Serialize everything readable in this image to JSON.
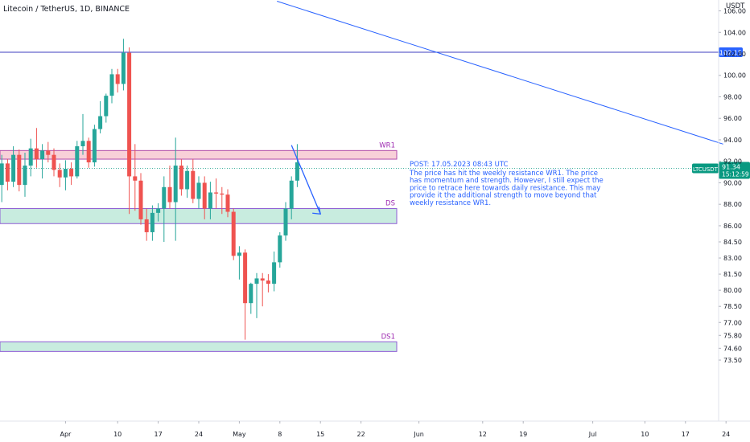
{
  "header": {
    "symbol_title": "Litecoin / TetherUS, 1D, BINANCE",
    "currency": "USDT"
  },
  "colors": {
    "up": "#26a69a",
    "down": "#ef5350",
    "resistance_fill": "#f8d0d8",
    "resistance_border": "#b04aa9",
    "support_fill": "#c8ecdf",
    "support_border": "#8e5bd4",
    "line_blue": "#2962ff",
    "note_text": "#2962ff",
    "zone_label": "#9c27b0",
    "price_badge": "#089981",
    "level_badge": "#2962ff"
  },
  "price_axis": {
    "ticks": [
      "106.00",
      "104.00",
      "102.00",
      "100.00",
      "98.00",
      "96.00",
      "94.00",
      "92.00",
      "90.00",
      "88.00",
      "86.00",
      "84.50",
      "83.00",
      "81.50",
      "80.00",
      "78.50",
      "77.00",
      "75.80",
      "74.60",
      "73.50"
    ],
    "level_badge": "102.15",
    "ticker_badge": "LTCUSDT",
    "last_price_badge": "91.34",
    "countdown_badge": "15:12:59"
  },
  "time_axis": {
    "ticks": [
      "Apr",
      "10",
      "17",
      "24",
      "May",
      "8",
      "15",
      "22",
      "Jun",
      "12",
      "19",
      "Jul",
      "10",
      "17",
      "24"
    ]
  },
  "zones": [
    {
      "label": "WR1",
      "top": 93.0,
      "bottom": 92.2,
      "kind": "resistance"
    },
    {
      "label": "DS",
      "top": 87.6,
      "bottom": 86.2,
      "kind": "support"
    },
    {
      "label": "DS1",
      "top": 75.2,
      "bottom": 74.3,
      "kind": "support"
    }
  ],
  "annotation": {
    "title": "POST: 17.05.2023 08:43 UTC",
    "lines": [
      "The price has hit the weekly resistance WR1. The price",
      "has momentum and strength. However, I still expect the",
      "price to retrace here towards daily resistance. This may",
      "provide it the additional strength to move beyond that",
      "weekly resistance WR1."
    ]
  },
  "chart_data": {
    "type": "candlestick",
    "symbol": "LTCUSDT",
    "interval": "1D",
    "exchange": "BINANCE",
    "x_start_date": "2023-03-20",
    "horizontal_level": 102.15,
    "last_price": 91.34,
    "candles": [
      {
        "o": 89.8,
        "h": 92.6,
        "l": 88.2,
        "c": 91.8
      },
      {
        "o": 91.8,
        "h": 92.2,
        "l": 89.3,
        "c": 90.1
      },
      {
        "o": 90.1,
        "h": 93.4,
        "l": 89.6,
        "c": 92.6
      },
      {
        "o": 92.6,
        "h": 93.1,
        "l": 89.2,
        "c": 89.8
      },
      {
        "o": 89.8,
        "h": 92.8,
        "l": 88.7,
        "c": 91.6
      },
      {
        "o": 91.6,
        "h": 94.1,
        "l": 90.6,
        "c": 93.2
      },
      {
        "o": 93.2,
        "h": 95.1,
        "l": 91.4,
        "c": 92.2
      },
      {
        "o": 92.2,
        "h": 93.6,
        "l": 90.4,
        "c": 93.0
      },
      {
        "o": 93.0,
        "h": 93.8,
        "l": 91.9,
        "c": 92.6
      },
      {
        "o": 92.6,
        "h": 93.2,
        "l": 90.6,
        "c": 91.2
      },
      {
        "o": 91.2,
        "h": 91.8,
        "l": 89.6,
        "c": 90.5
      },
      {
        "o": 90.5,
        "h": 92.1,
        "l": 89.3,
        "c": 91.3
      },
      {
        "o": 91.3,
        "h": 91.9,
        "l": 89.8,
        "c": 90.6
      },
      {
        "o": 90.6,
        "h": 93.9,
        "l": 90.4,
        "c": 93.4
      },
      {
        "o": 93.4,
        "h": 96.4,
        "l": 92.6,
        "c": 93.9
      },
      {
        "o": 93.9,
        "h": 94.2,
        "l": 91.4,
        "c": 91.9
      },
      {
        "o": 91.9,
        "h": 95.4,
        "l": 91.5,
        "c": 95.0
      },
      {
        "o": 95.0,
        "h": 97.6,
        "l": 94.6,
        "c": 96.2
      },
      {
        "o": 96.2,
        "h": 98.3,
        "l": 95.6,
        "c": 98.1
      },
      {
        "o": 98.1,
        "h": 100.6,
        "l": 97.4,
        "c": 100.1
      },
      {
        "o": 100.1,
        "h": 100.6,
        "l": 98.4,
        "c": 99.2
      },
      {
        "o": 99.2,
        "h": 103.4,
        "l": 98.6,
        "c": 102.1
      },
      {
        "o": 102.1,
        "h": 102.6,
        "l": 87.1,
        "c": 90.6
      },
      {
        "o": 90.6,
        "h": 93.6,
        "l": 87.4,
        "c": 90.2
      },
      {
        "o": 90.2,
        "h": 90.9,
        "l": 86.1,
        "c": 86.6
      },
      {
        "o": 86.6,
        "h": 87.6,
        "l": 84.6,
        "c": 85.4
      },
      {
        "o": 85.4,
        "h": 87.9,
        "l": 84.6,
        "c": 87.2
      },
      {
        "o": 87.2,
        "h": 88.1,
        "l": 86.4,
        "c": 87.6
      },
      {
        "o": 87.6,
        "h": 90.6,
        "l": 84.5,
        "c": 89.6
      },
      {
        "o": 89.6,
        "h": 91.6,
        "l": 87.6,
        "c": 88.2
      },
      {
        "o": 88.2,
        "h": 94.2,
        "l": 84.6,
        "c": 91.6
      },
      {
        "o": 91.6,
        "h": 92.2,
        "l": 88.8,
        "c": 89.4
      },
      {
        "o": 89.4,
        "h": 91.6,
        "l": 88.6,
        "c": 91.1
      },
      {
        "o": 91.1,
        "h": 92.2,
        "l": 88.1,
        "c": 88.5
      },
      {
        "o": 88.5,
        "h": 90.6,
        "l": 87.6,
        "c": 90.0
      },
      {
        "o": 90.0,
        "h": 90.6,
        "l": 86.6,
        "c": 87.6
      },
      {
        "o": 87.6,
        "h": 90.1,
        "l": 86.6,
        "c": 89.1
      },
      {
        "o": 89.1,
        "h": 90.4,
        "l": 87.6,
        "c": 89.0
      },
      {
        "o": 89.0,
        "h": 89.6,
        "l": 87.1,
        "c": 88.9
      },
      {
        "o": 88.9,
        "h": 89.4,
        "l": 86.8,
        "c": 87.3
      },
      {
        "o": 87.3,
        "h": 87.6,
        "l": 82.8,
        "c": 83.2
      },
      {
        "o": 83.2,
        "h": 84.1,
        "l": 81.0,
        "c": 83.5
      },
      {
        "o": 83.5,
        "h": 83.8,
        "l": 75.4,
        "c": 78.8
      },
      {
        "o": 78.8,
        "h": 80.7,
        "l": 77.8,
        "c": 80.6
      },
      {
        "o": 80.6,
        "h": 81.6,
        "l": 77.4,
        "c": 81.1
      },
      {
        "o": 81.1,
        "h": 81.6,
        "l": 78.5,
        "c": 80.9
      },
      {
        "o": 80.9,
        "h": 81.5,
        "l": 79.8,
        "c": 80.6
      },
      {
        "o": 80.6,
        "h": 83.6,
        "l": 79.9,
        "c": 82.6
      },
      {
        "o": 82.6,
        "h": 85.4,
        "l": 82.1,
        "c": 85.1
      },
      {
        "o": 85.1,
        "h": 88.2,
        "l": 84.6,
        "c": 87.6
      },
      {
        "o": 87.6,
        "h": 90.6,
        "l": 86.6,
        "c": 90.2
      },
      {
        "o": 90.2,
        "h": 93.6,
        "l": 89.6,
        "c": 91.9
      }
    ],
    "trendline": {
      "from": {
        "day": 48.5,
        "price": 106.9
      },
      "to": {
        "day": 125.5,
        "price": 93.6
      }
    },
    "projection_arrow": {
      "from": {
        "day": 51.0,
        "price": 93.5
      },
      "to": {
        "day": 56.0,
        "price": 87.1
      }
    },
    "x_ticks": [
      {
        "label": "Apr",
        "day": 12
      },
      {
        "label": "10",
        "day": 21
      },
      {
        "label": "17",
        "day": 28
      },
      {
        "label": "24",
        "day": 35
      },
      {
        "label": "May",
        "day": 42
      },
      {
        "label": "8",
        "day": 49
      },
      {
        "label": "15",
        "day": 56
      },
      {
        "label": "22",
        "day": 63
      },
      {
        "label": "Jun",
        "day": 73
      },
      {
        "label": "12",
        "day": 84
      },
      {
        "label": "19",
        "day": 91
      },
      {
        "label": "Jul",
        "day": 103
      },
      {
        "label": "10",
        "day": 112
      },
      {
        "label": "17",
        "day": 119
      },
      {
        "label": "24",
        "day": 126
      }
    ]
  }
}
